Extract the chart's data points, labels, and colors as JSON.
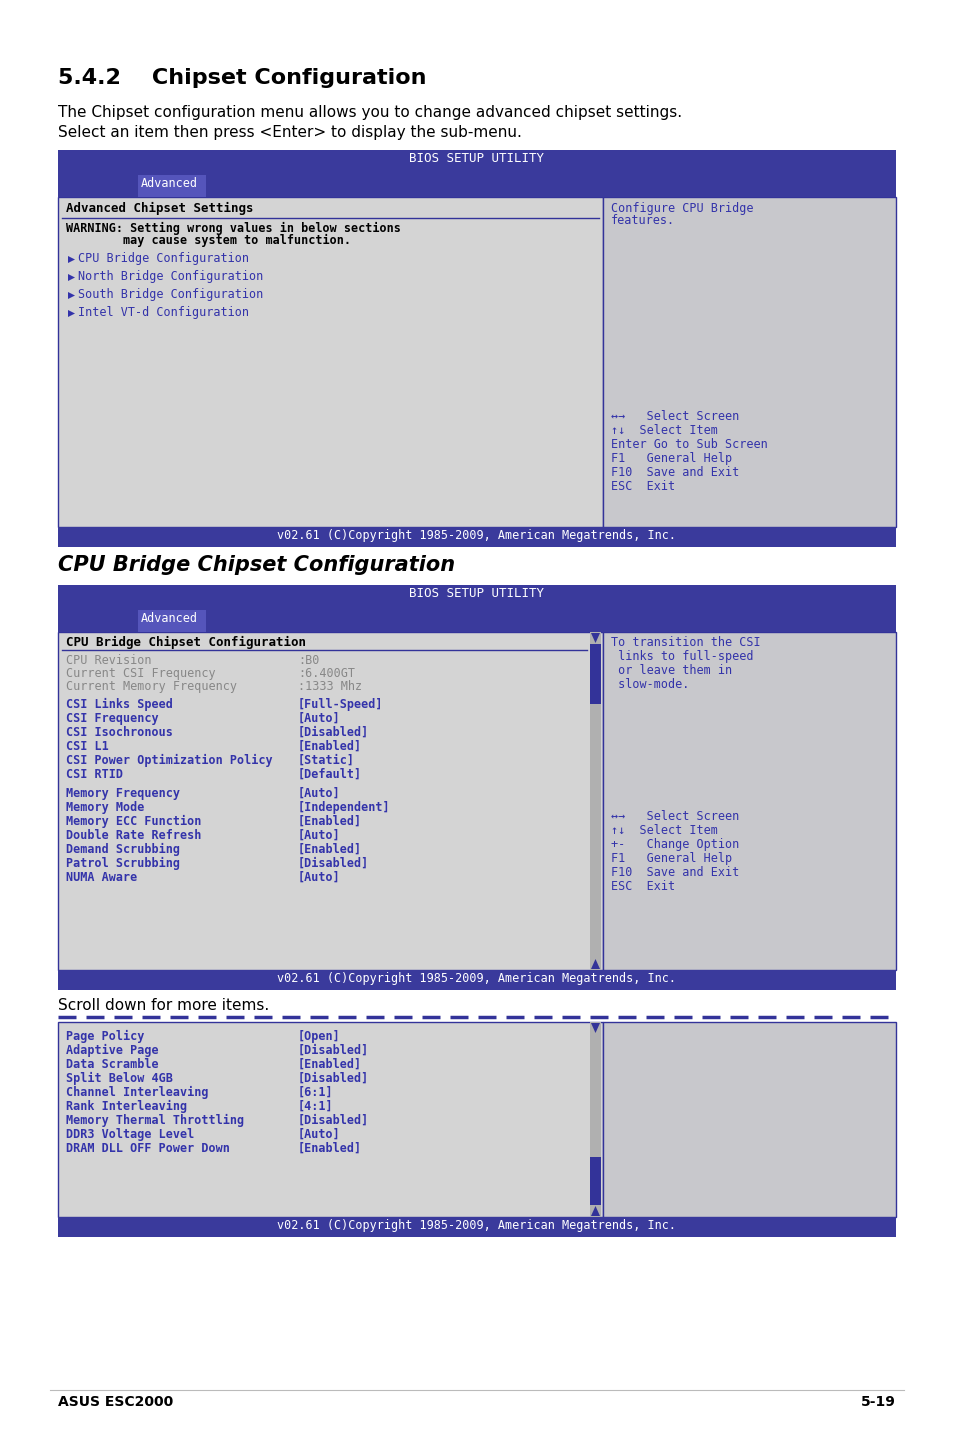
{
  "page_bg": "#ffffff",
  "section1_title": "5.4.2    Chipset Configuration",
  "section1_body_line1": "The Chipset configuration menu allows you to change advanced chipset settings.",
  "section1_body_line2": "Select an item then press <Enter> to display the sub-menu.",
  "section2_title": "CPU Bridge Chipset Configuration",
  "scroll_text": "Scroll down for more items.",
  "footer_left": "ASUS ESC2000",
  "footer_right": "5-19",
  "header_bg": "#3a3a9c",
  "header_text_color": "#ffffff",
  "bios_header": "BIOS SETUP UTILITY",
  "tab_label": "Advanced",
  "tab_bg": "#5555bb",
  "content_bg": "#d4d4d4",
  "right_panel_bg": "#c8c8cc",
  "border_color": "#333399",
  "text_blue": "#3333aa",
  "text_gray": "#888888",
  "copyright_text": "v02.61 (C)Copyright 1985-2009, American Megatrends, Inc.",
  "bios1_title": "Advanced Chipset Settings",
  "bios1_warn1": "WARNING: Setting wrong values in below sections",
  "bios1_warn2": "        may cause system to malfunction.",
  "bios1_items": [
    "CPU Bridge Configuration",
    "North Bridge Configuration",
    "South Bridge Configuration",
    "Intel VT-d Configuration"
  ],
  "bios1_right_help": [
    "Configure CPU Bridge",
    "features."
  ],
  "bios1_right_keys": [
    "↔→   Select Screen",
    "↑↓  Select Item",
    "Enter Go to Sub Screen",
    "F1   General Help",
    "F10  Save and Exit",
    "ESC  Exit"
  ],
  "bios2_title": "CPU Bridge Chipset Configuration",
  "bios2_info": [
    [
      "CPU Revision",
      ":B0"
    ],
    [
      "Current CSI Frequency",
      ":6.400GT"
    ],
    [
      "Current Memory Frequency",
      ":1333 Mhz"
    ]
  ],
  "bios2_menu1": [
    [
      "CSI Links Speed",
      "[Full-Speed]"
    ],
    [
      "CSI Frequency",
      "[Auto]"
    ],
    [
      "CSI Isochronous",
      "[Disabled]"
    ],
    [
      "CSI L1",
      "[Enabled]"
    ],
    [
      "CSI Power Optimization Policy",
      "[Static]"
    ],
    [
      "CSI RTID",
      "[Default]"
    ]
  ],
  "bios2_menu2": [
    [
      "Memory Frequency",
      "[Auto]"
    ],
    [
      "Memory Mode",
      "[Independent]"
    ],
    [
      "Memory ECC Function",
      "[Enabled]"
    ],
    [
      "Double Rate Refresh",
      "[Auto]"
    ],
    [
      "Demand Scrubbing",
      "[Enabled]"
    ],
    [
      "Patrol Scrubbing",
      "[Disabled]"
    ],
    [
      "NUMA Aware",
      "[Auto]"
    ]
  ],
  "bios2_right_help": [
    "To transition the CSI",
    " links to full-speed",
    " or leave them in",
    " slow-mode."
  ],
  "bios2_right_keys": [
    "↔→   Select Screen",
    "↑↓  Select Item",
    "+-   Change Option",
    "F1   General Help",
    "F10  Save and Exit",
    "ESC  Exit"
  ],
  "bios3_menu": [
    [
      "Page Policy",
      "[Open]"
    ],
    [
      "Adaptive Page",
      "[Disabled]"
    ],
    [
      "Data Scramble",
      "[Enabled]"
    ],
    [
      "Split Below 4GB",
      "[Disabled]"
    ],
    [
      "Channel Interleaving",
      "[6:1]"
    ],
    [
      "Rank Interleaving",
      "[4:1]"
    ],
    [
      "Memory Thermal Throttling",
      "[Disabled]"
    ],
    [
      "DDR3 Voltage Level",
      "[Auto]"
    ],
    [
      "DRAM DLL OFF Power Down",
      "[Enabled]"
    ]
  ]
}
